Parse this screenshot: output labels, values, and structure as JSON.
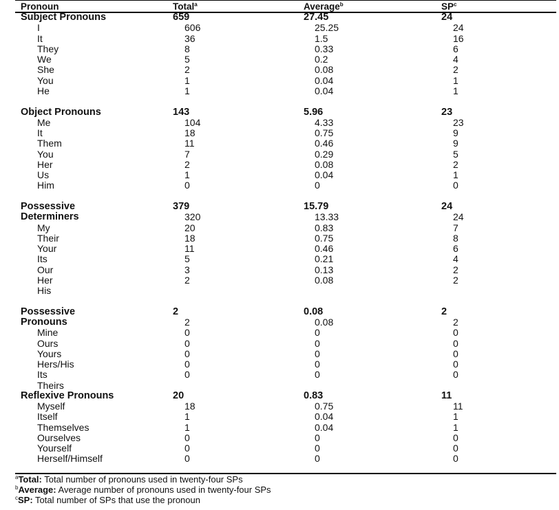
{
  "header": {
    "pronoun": "Pronoun",
    "total": "Total",
    "total_sup": "a",
    "average": "Average",
    "average_sup": "b",
    "sp": "SP",
    "sp_sup": "c"
  },
  "groups": [
    {
      "name_lines": [
        "Subject Pronouns"
      ],
      "total": "659",
      "average": "27.45",
      "sp": "24",
      "rows": [
        {
          "pronoun": "I",
          "total": "606",
          "average": "25.25",
          "sp": "24"
        },
        {
          "pronoun": "It",
          "total": "36",
          "average": "1.5",
          "sp": "16"
        },
        {
          "pronoun": "They",
          "total": "8",
          "average": "0.33",
          "sp": "6"
        },
        {
          "pronoun": "We",
          "total": "5",
          "average": "0.2",
          "sp": "4"
        },
        {
          "pronoun": "She",
          "total": "2",
          "average": "0.08",
          "sp": "2"
        },
        {
          "pronoun": "You",
          "total": "1",
          "average": "0.04",
          "sp": "1"
        },
        {
          "pronoun": "He",
          "total": "1",
          "average": "0.04",
          "sp": "1"
        }
      ]
    },
    {
      "name_lines": [
        "Object Pronouns"
      ],
      "total": "143",
      "average": "5.96",
      "sp": "23",
      "rows": [
        {
          "pronoun": "Me",
          "total": "104",
          "average": "4.33",
          "sp": "23"
        },
        {
          "pronoun": "It",
          "total": "18",
          "average": "0.75",
          "sp": "9"
        },
        {
          "pronoun": "Them",
          "total": "11",
          "average": "0.46",
          "sp": "9"
        },
        {
          "pronoun": "You",
          "total": "7",
          "average": "0.29",
          "sp": "5"
        },
        {
          "pronoun": "Her",
          "total": "2",
          "average": "0.08",
          "sp": "2"
        },
        {
          "pronoun": "Us",
          "total": "1",
          "average": "0.04",
          "sp": "1"
        },
        {
          "pronoun": "Him",
          "total": "0",
          "average": "0",
          "sp": "0"
        }
      ]
    },
    {
      "name_lines": [
        "Possessive",
        "Determiners"
      ],
      "total": "379",
      "average": "15.79",
      "sp": "24",
      "rows": [
        {
          "pronoun": "",
          "total": "320",
          "average": "13.33",
          "sp": "24"
        },
        {
          "pronoun": "My",
          "total": "20",
          "average": "0.83",
          "sp": "7"
        },
        {
          "pronoun": "Their",
          "total": "18",
          "average": "0.75",
          "sp": "8"
        },
        {
          "pronoun": "Your",
          "total": "11",
          "average": "0.46",
          "sp": "6"
        },
        {
          "pronoun": "Its",
          "total": "5",
          "average": "0.21",
          "sp": "4"
        },
        {
          "pronoun": "Our",
          "total": "3",
          "average": "0.13",
          "sp": "2"
        },
        {
          "pronoun": "Her",
          "total": "2",
          "average": "0.08",
          "sp": "2"
        },
        {
          "pronoun": "His",
          "total": "",
          "average": "",
          "sp": ""
        }
      ]
    },
    {
      "name_lines": [
        "Possessive",
        "Pronouns"
      ],
      "total": "2",
      "average": "0.08",
      "sp": "2",
      "rows": [
        {
          "pronoun": "",
          "total": "2",
          "average": "0.08",
          "sp": "2"
        },
        {
          "pronoun": "Mine",
          "total": "0",
          "average": "0",
          "sp": "0"
        },
        {
          "pronoun": "Ours",
          "total": "0",
          "average": "0",
          "sp": "0"
        },
        {
          "pronoun": "Yours",
          "total": "0",
          "average": "0",
          "sp": "0"
        },
        {
          "pronoun": "Hers/His",
          "total": "0",
          "average": "0",
          "sp": "0"
        },
        {
          "pronoun": "Its",
          "total": "0",
          "average": "0",
          "sp": "0"
        },
        {
          "pronoun": "Theirs",
          "total": "",
          "average": "",
          "sp": ""
        }
      ]
    },
    {
      "name_lines": [
        "Reflexive Pronouns"
      ],
      "total": "20",
      "average": "0.83",
      "sp": "11",
      "rows": [
        {
          "pronoun": "Myself",
          "total": "18",
          "average": "0.75",
          "sp": "11"
        },
        {
          "pronoun": "Itself",
          "total": "1",
          "average": "0.04",
          "sp": "1"
        },
        {
          "pronoun": "Themselves",
          "total": "1",
          "average": "0.04",
          "sp": "1"
        },
        {
          "pronoun": "Ourselves",
          "total": "0",
          "average": "0",
          "sp": "0"
        },
        {
          "pronoun": "Yourself",
          "total": "0",
          "average": "0",
          "sp": "0"
        },
        {
          "pronoun": "Herself/Himself",
          "total": "0",
          "average": "0",
          "sp": "0"
        }
      ]
    }
  ],
  "footnotes": [
    {
      "mark": "a",
      "term": "Total:",
      "text": " Total number of pronouns used in twenty-four SPs"
    },
    {
      "mark": "b",
      "term": "Average:",
      "text": " Average number of pronouns used in twenty-four SPs"
    },
    {
      "mark": "c",
      "term": "SP:",
      "text": " Total number of SPs that use the pronoun"
    }
  ]
}
